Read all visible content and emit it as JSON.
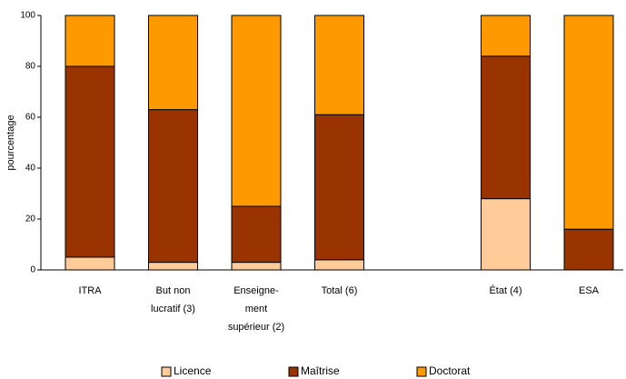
{
  "chart_data": {
    "type": "stacked_bar",
    "y_label": "pourcentage",
    "categories": [
      "ITRA",
      "But non\nlucratif (3)",
      "Enseigne-\nment\nsupérieur (2)",
      "Total (6)",
      null,
      "État (4)",
      "ESA"
    ],
    "series": [
      {
        "name": "Licence",
        "color": "#ffcc99",
        "values": [
          5,
          3,
          3,
          4,
          null,
          28,
          0
        ]
      },
      {
        "name": "Maîtrise",
        "color": "#993300",
        "values": [
          75,
          60,
          22,
          57,
          null,
          56,
          16
        ]
      },
      {
        "name": "Doctorat",
        "color": "#ff9900",
        "values": [
          20,
          37,
          75,
          39,
          null,
          16,
          84
        ]
      }
    ],
    "ylim": [
      0,
      100
    ],
    "yticks": [
      0,
      20,
      40,
      60,
      80,
      100
    ],
    "grid": false,
    "legend": "bottom"
  }
}
